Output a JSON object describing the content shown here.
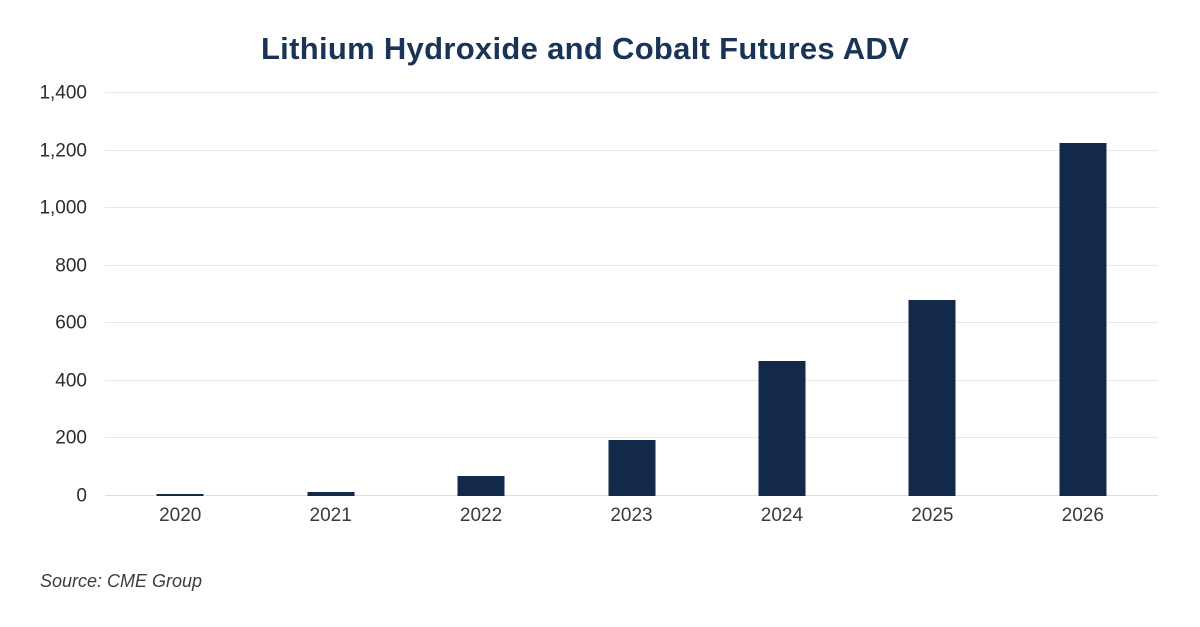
{
  "source": {
    "text": "Source: CME Group"
  },
  "colors": {
    "bar": "#12294a",
    "title": "#1a3457",
    "grid": "#e8e8e8",
    "axis_text": "#3a3a3a"
  },
  "chart_data": {
    "type": "bar",
    "title": "Lithium Hydroxide and Cobalt Futures ADV",
    "categories": [
      "2020",
      "2021",
      "2022",
      "2023",
      "2024",
      "2025",
      "2026"
    ],
    "values": [
      5,
      15,
      70,
      195,
      470,
      680,
      1225
    ],
    "xlabel": "",
    "ylabel": "",
    "ylim": [
      0,
      1400
    ],
    "ytick_step": 200,
    "ytick_labels": [
      "0",
      "200",
      "400",
      "600",
      "800",
      "1,000",
      "1,200",
      "1,400"
    ],
    "grid": true,
    "legend_position": "none",
    "bar_color": "#12294a"
  }
}
